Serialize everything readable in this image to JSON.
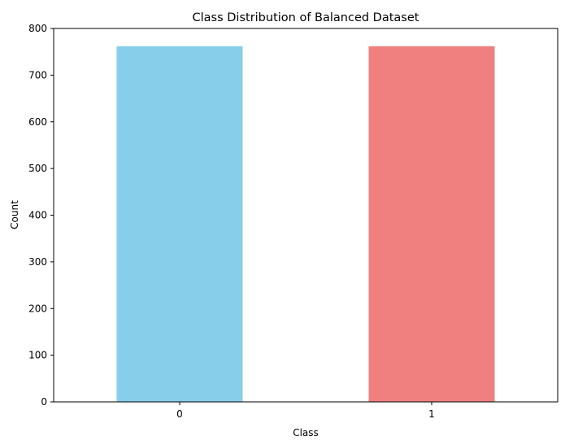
{
  "chart_data": {
    "type": "bar",
    "title": "Class Distribution of Balanced Dataset",
    "xlabel": "Class",
    "ylabel": "Count",
    "categories": [
      "0",
      "1"
    ],
    "values": [
      762,
      762
    ],
    "colors": [
      "#87CEEB",
      "#F08080"
    ],
    "ylim": [
      0,
      800
    ],
    "yticks": [
      0,
      100,
      200,
      300,
      400,
      500,
      600,
      700,
      800
    ],
    "grid": false,
    "legend": "none"
  }
}
